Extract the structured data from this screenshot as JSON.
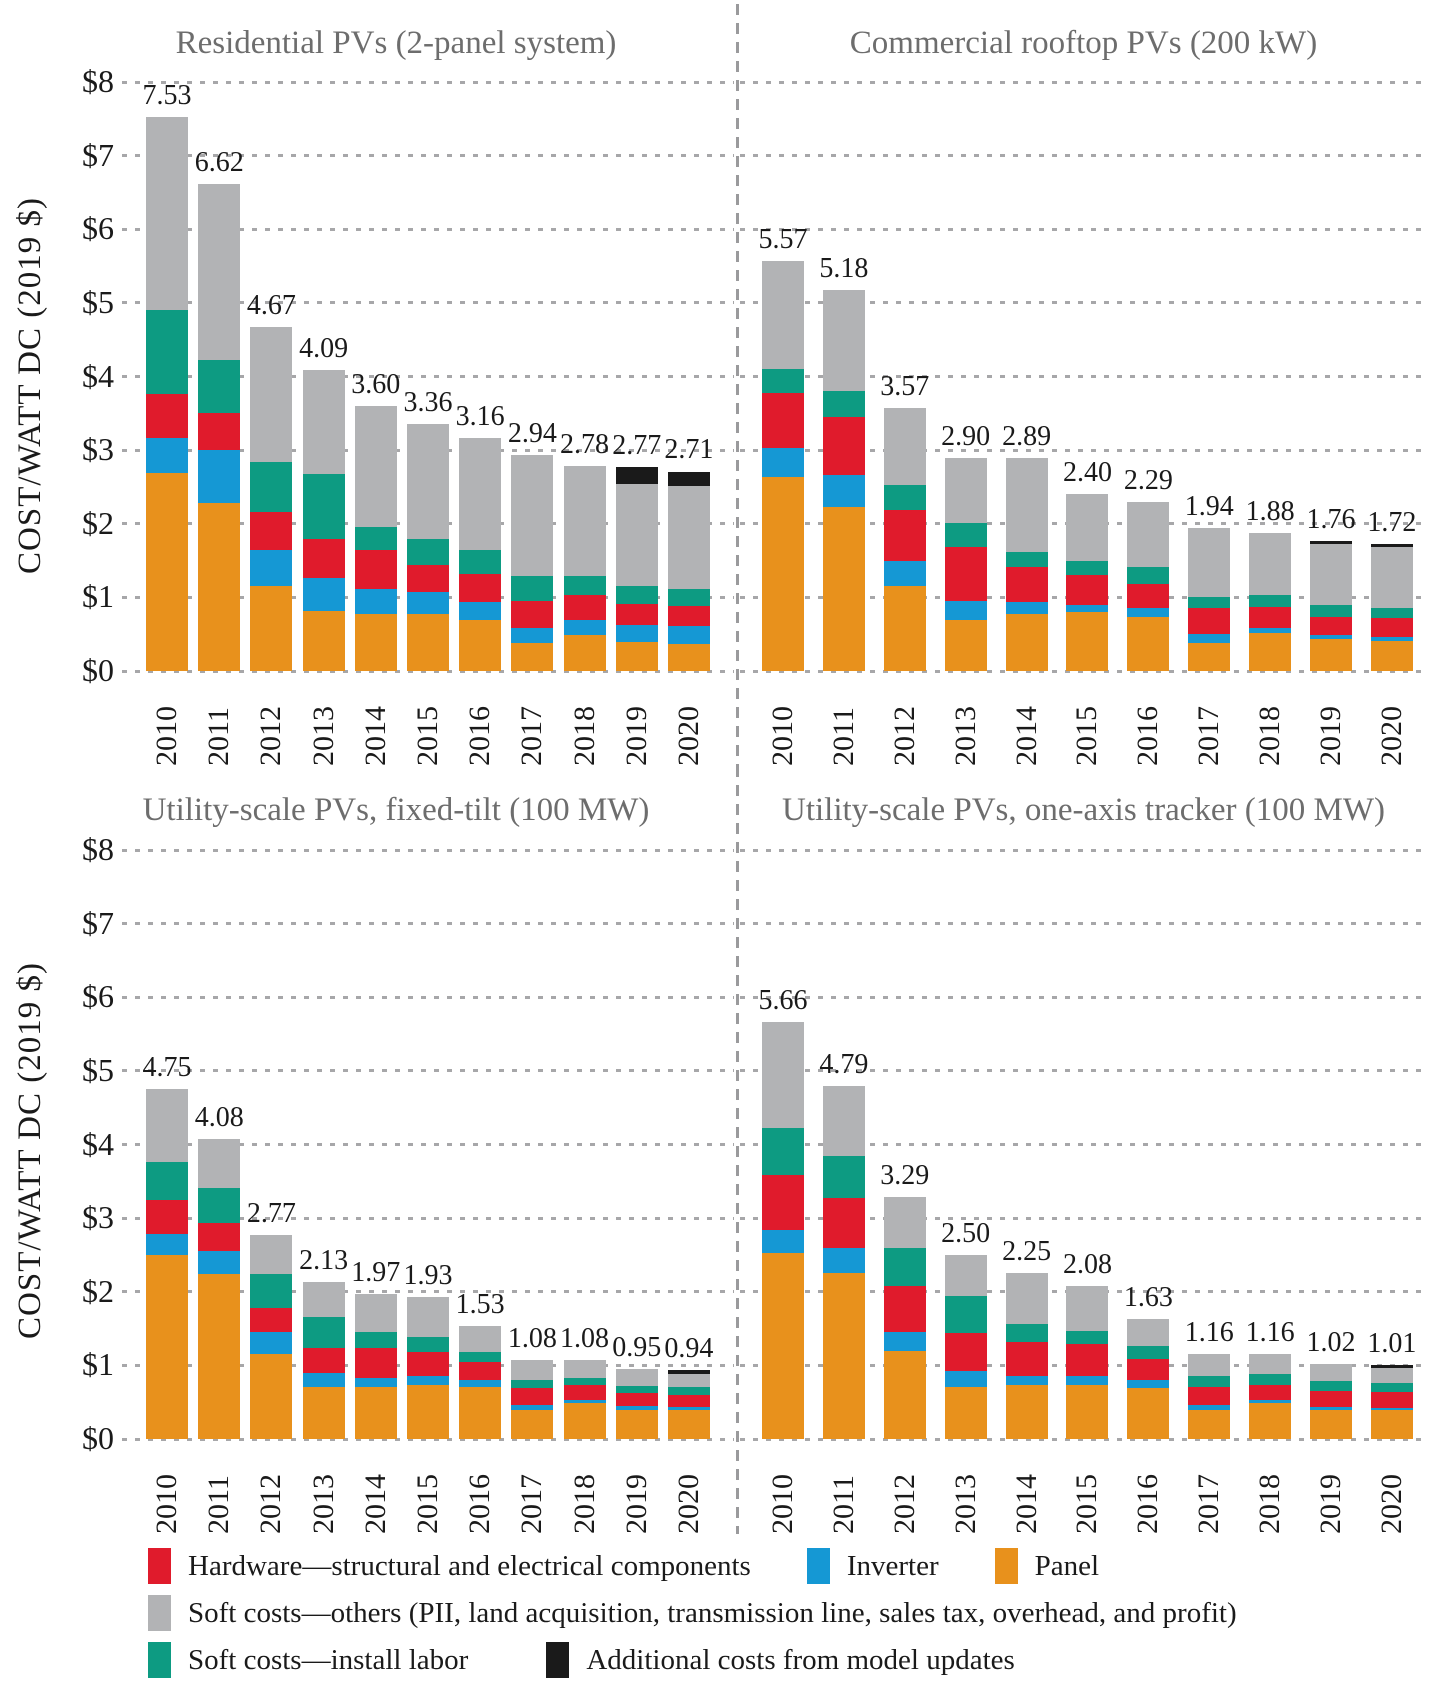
{
  "figure": {
    "y_axis_label": "COST/WATT DC (2019 $)",
    "y_ticks": [
      "$8",
      "$7",
      "$6",
      "$5",
      "$4",
      "$3",
      "$2",
      "$1",
      "$0"
    ]
  },
  "colors": {
    "panel": "#E8911C",
    "inverter": "#1598D4",
    "hardware": "#E01B2C",
    "install_labor": "#0D9B82",
    "soft_other": "#B2B3B5",
    "model_updates": "#1A1A1A"
  },
  "legend": {
    "items": [
      {
        "color_key": "hardware",
        "label": "Hardware—structural and electrical components"
      },
      {
        "color_key": "inverter",
        "label": "Inverter"
      },
      {
        "color_key": "panel",
        "label": "Panel"
      },
      {
        "color_key": "soft_other",
        "label": "Soft costs—others (PII, land acquisition, transmission line, sales tax, overhead, and profit)"
      },
      {
        "color_key": "install_labor",
        "label": "Soft costs—install labor"
      },
      {
        "color_key": "model_updates",
        "label": "Additional costs from model updates"
      }
    ]
  },
  "chart_data": [
    {
      "type": "bar",
      "stacked": true,
      "title": "Residential PVs (2-panel system)",
      "ylim": [
        0,
        8
      ],
      "categories": [
        "2010",
        "2011",
        "2012",
        "2013",
        "2014",
        "2015",
        "2016",
        "2017",
        "2018",
        "2019",
        "2020"
      ],
      "totals": [
        "7.53",
        "6.62",
        "4.67",
        "4.09",
        "3.60",
        "3.36",
        "3.16",
        "2.94",
        "2.78",
        "2.77",
        "2.71"
      ],
      "series": [
        {
          "name": "Panel",
          "color_key": "panel",
          "values": [
            2.69,
            2.28,
            1.15,
            0.81,
            0.77,
            0.77,
            0.69,
            0.38,
            0.49,
            0.4,
            0.37
          ]
        },
        {
          "name": "Inverter",
          "color_key": "inverter",
          "values": [
            0.47,
            0.72,
            0.5,
            0.46,
            0.34,
            0.31,
            0.25,
            0.2,
            0.2,
            0.23,
            0.24
          ]
        },
        {
          "name": "Hardware—structural and electrical components",
          "color_key": "hardware",
          "values": [
            0.6,
            0.51,
            0.51,
            0.53,
            0.53,
            0.36,
            0.38,
            0.37,
            0.34,
            0.28,
            0.28
          ]
        },
        {
          "name": "Soft costs—install labor",
          "color_key": "install_labor",
          "values": [
            1.14,
            0.72,
            0.68,
            0.88,
            0.32,
            0.36,
            0.33,
            0.34,
            0.26,
            0.24,
            0.23
          ]
        },
        {
          "name": "Soft costs—others (PII, land acquisition, transmission line, sales tax, overhead, and profit)",
          "color_key": "soft_other",
          "values": [
            2.63,
            2.39,
            1.83,
            1.41,
            1.64,
            1.56,
            1.51,
            1.65,
            1.49,
            1.39,
            1.39
          ]
        },
        {
          "name": "Additional costs from model updates",
          "color_key": "model_updates",
          "values": [
            0,
            0,
            0,
            0,
            0,
            0,
            0,
            0,
            0,
            0.23,
            0.2
          ]
        }
      ]
    },
    {
      "type": "bar",
      "stacked": true,
      "title": "Commercial rooftop PVs (200 kW)",
      "ylim": [
        0,
        8
      ],
      "categories": [
        "2010",
        "2011",
        "2012",
        "2013",
        "2014",
        "2015",
        "2016",
        "2017",
        "2018",
        "2019",
        "2020"
      ],
      "totals": [
        "5.57",
        "5.18",
        "3.57",
        "2.90",
        "2.89",
        "2.40",
        "2.29",
        "1.94",
        "1.88",
        "1.76",
        "1.72"
      ],
      "series": [
        {
          "name": "Panel",
          "color_key": "panel",
          "values": [
            2.64,
            2.23,
            1.15,
            0.69,
            0.78,
            0.8,
            0.73,
            0.38,
            0.51,
            0.43,
            0.41
          ]
        },
        {
          "name": "Inverter",
          "color_key": "inverter",
          "values": [
            0.39,
            0.43,
            0.35,
            0.26,
            0.16,
            0.1,
            0.13,
            0.12,
            0.07,
            0.06,
            0.05
          ]
        },
        {
          "name": "Hardware—structural and electrical components",
          "color_key": "hardware",
          "values": [
            0.74,
            0.79,
            0.69,
            0.74,
            0.47,
            0.4,
            0.32,
            0.35,
            0.29,
            0.25,
            0.26
          ]
        },
        {
          "name": "Soft costs—install labor",
          "color_key": "install_labor",
          "values": [
            0.33,
            0.35,
            0.34,
            0.32,
            0.21,
            0.2,
            0.23,
            0.16,
            0.16,
            0.16,
            0.14
          ]
        },
        {
          "name": "Soft costs—others (PII, land acquisition, transmission line, sales tax, overhead, and profit)",
          "color_key": "soft_other",
          "values": [
            1.47,
            1.38,
            1.04,
            0.89,
            1.27,
            0.9,
            0.88,
            0.93,
            0.85,
            0.83,
            0.83
          ]
        },
        {
          "name": "Additional costs from model updates",
          "color_key": "model_updates",
          "values": [
            0,
            0,
            0,
            0,
            0,
            0,
            0,
            0,
            0,
            0.03,
            0.03
          ]
        }
      ]
    },
    {
      "type": "bar",
      "stacked": true,
      "title": "Utility-scale PVs, fixed-tilt (100 MW)",
      "ylim": [
        0,
        8
      ],
      "categories": [
        "2010",
        "2011",
        "2012",
        "2013",
        "2014",
        "2015",
        "2016",
        "2017",
        "2018",
        "2019",
        "2020"
      ],
      "totals": [
        "4.75",
        "4.08",
        "2.77",
        "2.13",
        "1.97",
        "1.93",
        "1.53",
        "1.08",
        "1.08",
        "0.95",
        "0.94"
      ],
      "series": [
        {
          "name": "Panel",
          "color_key": "panel",
          "values": [
            2.5,
            2.24,
            1.15,
            0.7,
            0.71,
            0.73,
            0.71,
            0.39,
            0.49,
            0.4,
            0.39
          ]
        },
        {
          "name": "Inverter",
          "color_key": "inverter",
          "values": [
            0.28,
            0.31,
            0.3,
            0.19,
            0.12,
            0.12,
            0.09,
            0.07,
            0.04,
            0.05,
            0.04
          ]
        },
        {
          "name": "Hardware—structural and electrical components",
          "color_key": "hardware",
          "values": [
            0.46,
            0.39,
            0.33,
            0.35,
            0.4,
            0.33,
            0.24,
            0.23,
            0.2,
            0.17,
            0.17
          ]
        },
        {
          "name": "Soft costs—install labor",
          "color_key": "install_labor",
          "values": [
            0.52,
            0.47,
            0.46,
            0.42,
            0.22,
            0.21,
            0.14,
            0.11,
            0.1,
            0.1,
            0.1
          ]
        },
        {
          "name": "Soft costs—others (PII, land acquisition, transmission line, sales tax, overhead, and profit)",
          "color_key": "soft_other",
          "values": [
            0.99,
            0.67,
            0.53,
            0.47,
            0.52,
            0.54,
            0.35,
            0.28,
            0.25,
            0.23,
            0.19
          ]
        },
        {
          "name": "Additional costs from model updates",
          "color_key": "model_updates",
          "values": [
            0,
            0,
            0,
            0,
            0,
            0,
            0,
            0,
            0,
            0,
            0.05
          ]
        }
      ]
    },
    {
      "type": "bar",
      "stacked": true,
      "title": "Utility-scale PVs, one-axis tracker (100 MW)",
      "ylim": [
        0,
        8
      ],
      "categories": [
        "2010",
        "2011",
        "2012",
        "2013",
        "2014",
        "2015",
        "2016",
        "2017",
        "2018",
        "2019",
        "2020"
      ],
      "totals": [
        "5.66",
        "4.79",
        "3.29",
        "2.50",
        "2.25",
        "2.08",
        "1.63",
        "1.16",
        "1.16",
        "1.02",
        "1.01"
      ],
      "series": [
        {
          "name": "Panel",
          "color_key": "panel",
          "values": [
            2.53,
            2.25,
            1.19,
            0.71,
            0.74,
            0.73,
            0.69,
            0.39,
            0.49,
            0.4,
            0.39
          ]
        },
        {
          "name": "Inverter",
          "color_key": "inverter",
          "values": [
            0.31,
            0.34,
            0.27,
            0.21,
            0.12,
            0.12,
            0.11,
            0.07,
            0.04,
            0.04,
            0.03
          ]
        },
        {
          "name": "Hardware—structural and electrical components",
          "color_key": "hardware",
          "values": [
            0.74,
            0.69,
            0.62,
            0.52,
            0.46,
            0.44,
            0.29,
            0.25,
            0.21,
            0.21,
            0.22
          ]
        },
        {
          "name": "Soft costs—install labor",
          "color_key": "install_labor",
          "values": [
            0.64,
            0.56,
            0.51,
            0.5,
            0.24,
            0.18,
            0.17,
            0.14,
            0.14,
            0.14,
            0.12
          ]
        },
        {
          "name": "Soft costs—others (PII, land acquisition, transmission line, sales tax, overhead, and profit)",
          "color_key": "soft_other",
          "values": [
            1.44,
            0.95,
            0.7,
            0.56,
            0.69,
            0.61,
            0.37,
            0.31,
            0.28,
            0.23,
            0.21
          ]
        },
        {
          "name": "Additional costs from model updates",
          "color_key": "model_updates",
          "values": [
            0,
            0,
            0,
            0,
            0,
            0,
            0,
            0,
            0,
            0,
            0.04
          ]
        }
      ]
    }
  ]
}
